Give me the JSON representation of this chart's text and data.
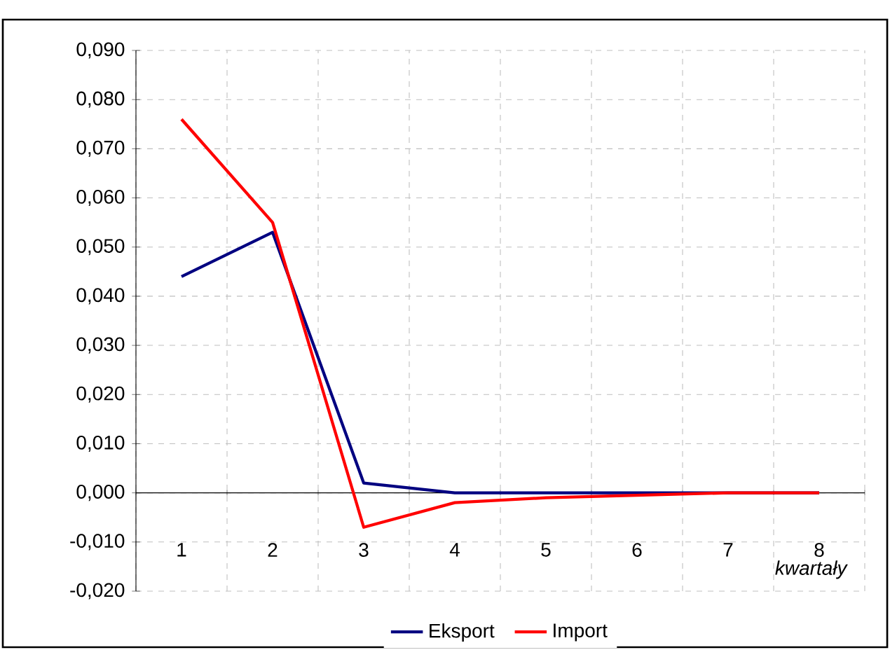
{
  "chart_data": {
    "type": "line",
    "xlabel": "kwartały",
    "categories": [
      "1",
      "2",
      "3",
      "4",
      "5",
      "6",
      "7",
      "8"
    ],
    "series": [
      {
        "name": "Eksport",
        "color": "#000080",
        "values": [
          0.044,
          0.053,
          0.002,
          0.0,
          0.0,
          0.0,
          0.0,
          0.0
        ]
      },
      {
        "name": "Import",
        "color": "#ff0000",
        "values": [
          0.076,
          0.055,
          -0.007,
          -0.002,
          -0.001,
          -0.0005,
          0.0,
          0.0
        ]
      }
    ],
    "ylim": [
      -0.02,
      0.09
    ],
    "yticks": [
      {
        "value": -0.02,
        "label": "-0,020"
      },
      {
        "value": -0.01,
        "label": "-0,010"
      },
      {
        "value": 0,
        "label": "0,000"
      },
      {
        "value": 0.01,
        "label": "0,010"
      },
      {
        "value": 0.02,
        "label": "0,020"
      },
      {
        "value": 0.03,
        "label": "0,030"
      },
      {
        "value": 0.04,
        "label": "0,040"
      },
      {
        "value": 0.05,
        "label": "0,050"
      },
      {
        "value": 0.06,
        "label": "0,060"
      },
      {
        "value": 0.07,
        "label": "0,070"
      },
      {
        "value": 0.08,
        "label": "0,080"
      },
      {
        "value": 0.09,
        "label": "0,090"
      }
    ],
    "grid": true,
    "legend": "bottom",
    "marker": "none",
    "line_style": "solid"
  }
}
